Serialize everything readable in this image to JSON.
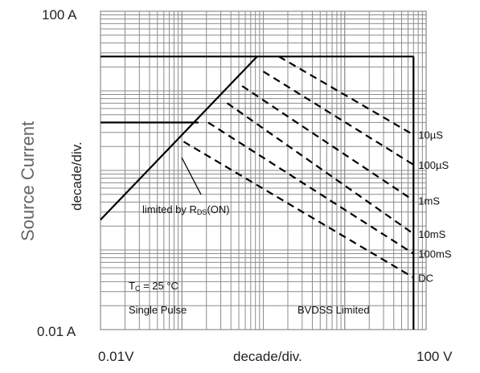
{
  "chart_data": {
    "type": "line",
    "title": "",
    "xlabel": "decade/div.",
    "ylabel": "decade/div.",
    "ylabel_outer": "Source Current",
    "x_tick_labels": {
      "min": "0.01V",
      "max": "100  V"
    },
    "y_tick_labels": {
      "min": "0.01 A",
      "max": "100  A"
    },
    "xlim": [
      0.01,
      100
    ],
    "ylim": [
      0.01,
      100
    ],
    "x_scale": "log",
    "y_scale": "log",
    "grid": true,
    "series": [
      {
        "name": "limited by RDS(ON)",
        "style": "solid",
        "points": [
          [
            0.01,
            0.24
          ],
          [
            0.84,
            27.0
          ]
        ]
      },
      {
        "name": "",
        "style": "solid",
        "points": [
          [
            0.01,
            27.0
          ],
          [
            70,
            27.0
          ]
        ]
      },
      {
        "name": "",
        "style": "solid",
        "points": [
          [
            0.01,
            4.0
          ],
          [
            0.16,
            4.0
          ]
        ]
      },
      {
        "name": "BVDSS Limited",
        "style": "solid",
        "points": [
          [
            70,
            27.0
          ],
          [
            70,
            0.01
          ]
        ]
      }
    ],
    "pulse_lines": [
      {
        "label": "10µS",
        "points": [
          [
            1.55,
            27.0
          ],
          [
            70,
            2.8
          ]
        ]
      },
      {
        "label": "100µS",
        "points": [
          [
            1.0,
            17.5
          ],
          [
            70,
            1.18
          ]
        ]
      },
      {
        "label": "1mS",
        "points": [
          [
            0.55,
            11.5
          ],
          [
            70,
            0.42
          ]
        ]
      },
      {
        "label": "10mS",
        "points": [
          [
            0.36,
            7.0
          ],
          [
            70,
            0.16
          ]
        ]
      },
      {
        "label": "100mS",
        "points": [
          [
            0.21,
            4.0
          ],
          [
            70,
            0.09
          ]
        ]
      },
      {
        "label": "DC",
        "points": [
          [
            0.105,
            2.3
          ],
          [
            70,
            0.045
          ]
        ]
      }
    ],
    "annotations": {
      "rds_prefix": "limited by R",
      "rds_sub": "DS",
      "rds_suffix": "(ON)",
      "tc_prefix": "T",
      "tc_sub": "C",
      "tc_suffix": " = 25 °C",
      "single_pulse": "Single Pulse",
      "bvdss": "BVDSS Limited"
    }
  }
}
